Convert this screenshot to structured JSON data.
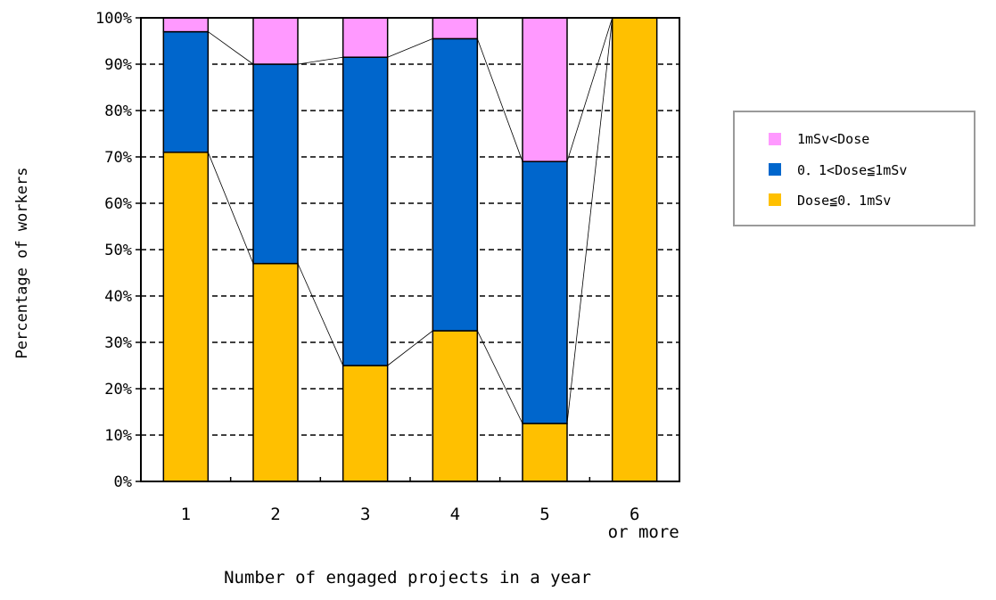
{
  "chart_data": {
    "type": "bar",
    "stacked": true,
    "categories": [
      "1",
      "2",
      "3",
      "4",
      "5",
      "6\nor more"
    ],
    "series": [
      {
        "name": "Dose≤0.1mSv",
        "color": "#FFC000",
        "values": [
          71,
          47,
          25,
          32.5,
          12.5,
          100
        ]
      },
      {
        "name": "0.1<Dose≤1mSv",
        "color": "#0066CC",
        "values": [
          26,
          43,
          66.5,
          63,
          56.5,
          0
        ]
      },
      {
        "name": "1mSv<Dose",
        "color": "#FF99FF",
        "values": [
          3,
          10,
          8.5,
          4.5,
          31,
          0
        ]
      }
    ],
    "xlabel": "Number of engaged projects in a year",
    "ylabel": "Percentage of workers",
    "ylim": [
      0,
      100
    ],
    "yticks": [
      "0%",
      "10%",
      "20%",
      "30%",
      "40%",
      "50%",
      "60%",
      "70%",
      "80%",
      "90%",
      "100%"
    ],
    "grid": "dashed horizontal",
    "series_lines": true,
    "legend_position": "right"
  },
  "legend": {
    "items": [
      {
        "label": "1mSv<Dose",
        "color": "#FF99FF"
      },
      {
        "label": "0．1<Dose≦1mSv",
        "color": "#0066CC"
      },
      {
        "label": "Dose≦0．1mSv",
        "color": "#FFC000"
      }
    ]
  }
}
